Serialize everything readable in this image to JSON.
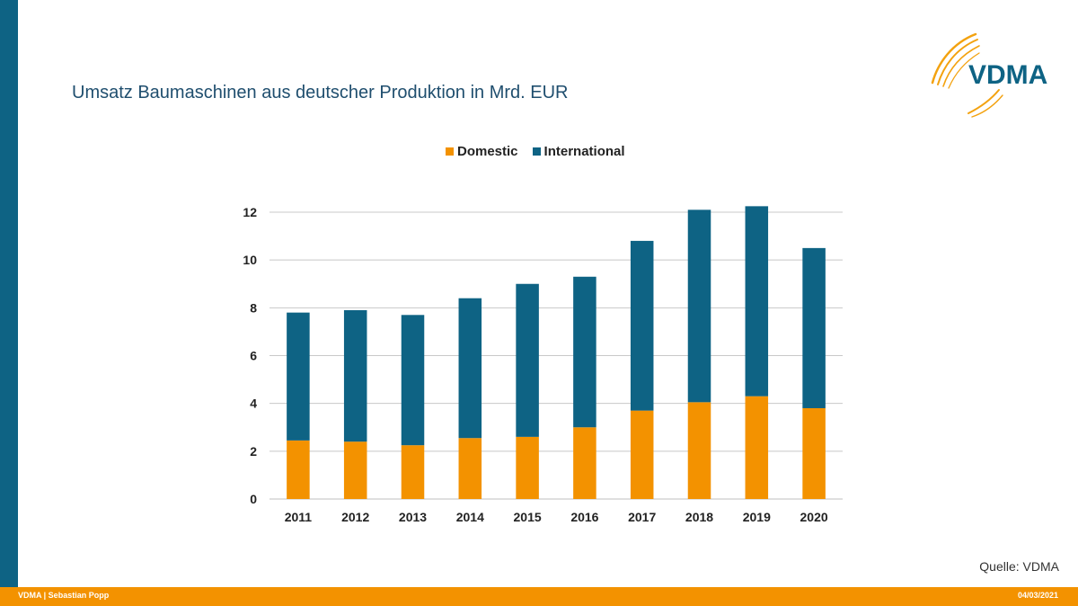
{
  "slide": {
    "title": "Umsatz Baumaschinen aus deutscher Produktion in Mrd. EUR",
    "source": "Quelle: VDMA",
    "logo_text": "VDMA",
    "footer_left": "VDMA | Sebastian Popp",
    "footer_right": "04/03/2021"
  },
  "colors": {
    "domestic": "#f39200",
    "international": "#0e6384",
    "accent_bar": "#0e6384",
    "footer": "#f39200",
    "title": "#1f4e6e"
  },
  "chart_data": {
    "type": "bar",
    "stacked": true,
    "title": "",
    "xlabel": "",
    "ylabel": "",
    "categories": [
      "2011",
      "2012",
      "2013",
      "2014",
      "2015",
      "2016",
      "2017",
      "2018",
      "2019",
      "2020"
    ],
    "series": [
      {
        "name": "Domestic",
        "values": [
          2.45,
          2.4,
          2.25,
          2.55,
          2.6,
          3.0,
          3.7,
          4.05,
          4.3,
          3.8
        ]
      },
      {
        "name": "International",
        "values": [
          5.35,
          5.5,
          5.45,
          5.85,
          6.4,
          6.3,
          7.1,
          8.05,
          7.95,
          6.7
        ]
      }
    ],
    "ylim": [
      0,
      12
    ],
    "yticks": [
      0,
      2,
      4,
      6,
      8,
      10,
      12
    ],
    "grid": true,
    "legend_position": "top"
  }
}
